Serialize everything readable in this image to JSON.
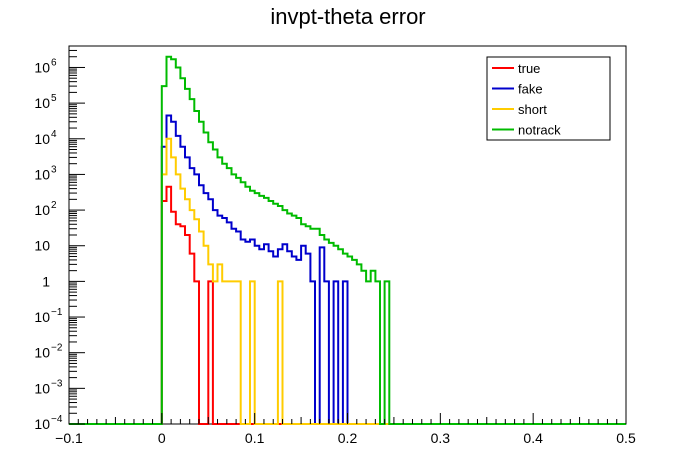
{
  "chart_data": {
    "type": "line",
    "title": "invpt-theta error",
    "xlabel": "",
    "ylabel": "",
    "xlim": [
      -0.1,
      0.5
    ],
    "ylim": [
      0.0001,
      4000000
    ],
    "y_scale": "log",
    "grid": false,
    "legend_position": "top-right",
    "x_ticks": [
      {
        "value": -0.1,
        "label": "−0.1"
      },
      {
        "value": 0,
        "label": "0"
      },
      {
        "value": 0.1,
        "label": "0.1"
      },
      {
        "value": 0.2,
        "label": "0.2"
      },
      {
        "value": 0.3,
        "label": "0.3"
      },
      {
        "value": 0.4,
        "label": "0.4"
      },
      {
        "value": 0.5,
        "label": "0.5"
      }
    ],
    "y_ticks": [
      {
        "exp": -4,
        "base": "10",
        "sup": "−4"
      },
      {
        "exp": -3,
        "base": "10",
        "sup": "−3"
      },
      {
        "exp": -2,
        "base": "10",
        "sup": "−2"
      },
      {
        "exp": -1,
        "base": "10",
        "sup": "−1"
      },
      {
        "exp": 0,
        "base": "1",
        "sup": ""
      },
      {
        "exp": 1,
        "base": "10",
        "sup": ""
      },
      {
        "exp": 2,
        "base": "10",
        "sup": "2"
      },
      {
        "exp": 3,
        "base": "10",
        "sup": "3"
      },
      {
        "exp": 4,
        "base": "10",
        "sup": "4"
      },
      {
        "exp": 5,
        "base": "10",
        "sup": "5"
      },
      {
        "exp": 6,
        "base": "10",
        "sup": "6"
      }
    ],
    "bin_start": 0,
    "bin_width": 0.005,
    "series": [
      {
        "name": "true",
        "color": "#ff0000",
        "values": [
          180,
          450,
          90,
          40,
          35,
          20,
          6,
          1,
          0,
          0,
          1,
          0,
          0,
          0,
          0,
          0,
          0,
          0,
          0,
          0,
          0,
          0,
          0,
          0,
          0,
          0,
          0,
          0,
          0,
          0,
          0,
          0,
          0,
          0,
          0,
          0,
          0,
          0,
          0,
          0,
          0,
          0,
          0,
          0,
          0,
          0,
          0,
          0,
          0,
          0,
          0,
          0
        ]
      },
      {
        "name": "fake",
        "color": "#0000cc",
        "values": [
          6000,
          45000,
          30000,
          12000,
          6000,
          3000,
          1500,
          1000,
          500,
          300,
          200,
          100,
          70,
          60,
          45,
          30,
          25,
          15,
          13,
          15,
          10,
          8,
          11,
          7,
          5,
          8,
          11,
          7,
          5,
          4,
          10,
          6,
          1,
          0,
          9,
          1,
          0,
          1,
          0,
          1,
          0,
          0,
          0,
          0,
          0,
          0,
          0,
          0,
          0,
          0,
          0,
          0
        ]
      },
      {
        "name": "short",
        "color": "#ffcc00",
        "values": [
          1000,
          10000,
          3000,
          1000,
          400,
          200,
          100,
          55,
          25,
          10,
          3,
          1,
          3,
          1,
          1,
          1,
          1,
          0,
          0,
          1,
          0,
          0,
          0,
          0,
          0,
          1,
          0,
          0,
          0,
          0,
          0,
          0,
          0,
          0,
          0,
          0,
          0,
          0,
          0,
          0,
          0,
          0,
          0,
          0,
          0,
          0,
          0,
          0,
          0,
          0,
          0,
          0
        ]
      },
      {
        "name": "notrack",
        "color": "#00bb00",
        "values": [
          300000,
          2000000,
          1700000,
          1000000,
          500000,
          250000,
          130000,
          60000,
          30000,
          15000,
          8000,
          5000,
          3000,
          2000,
          1500,
          1000,
          800,
          600,
          450,
          350,
          300,
          250,
          220,
          180,
          150,
          130,
          100,
          80,
          70,
          60,
          40,
          35,
          30,
          30,
          20,
          15,
          12,
          10,
          8,
          6,
          5,
          4,
          3,
          2,
          1,
          2,
          1,
          0,
          1,
          0,
          0,
          0
        ]
      }
    ]
  }
}
